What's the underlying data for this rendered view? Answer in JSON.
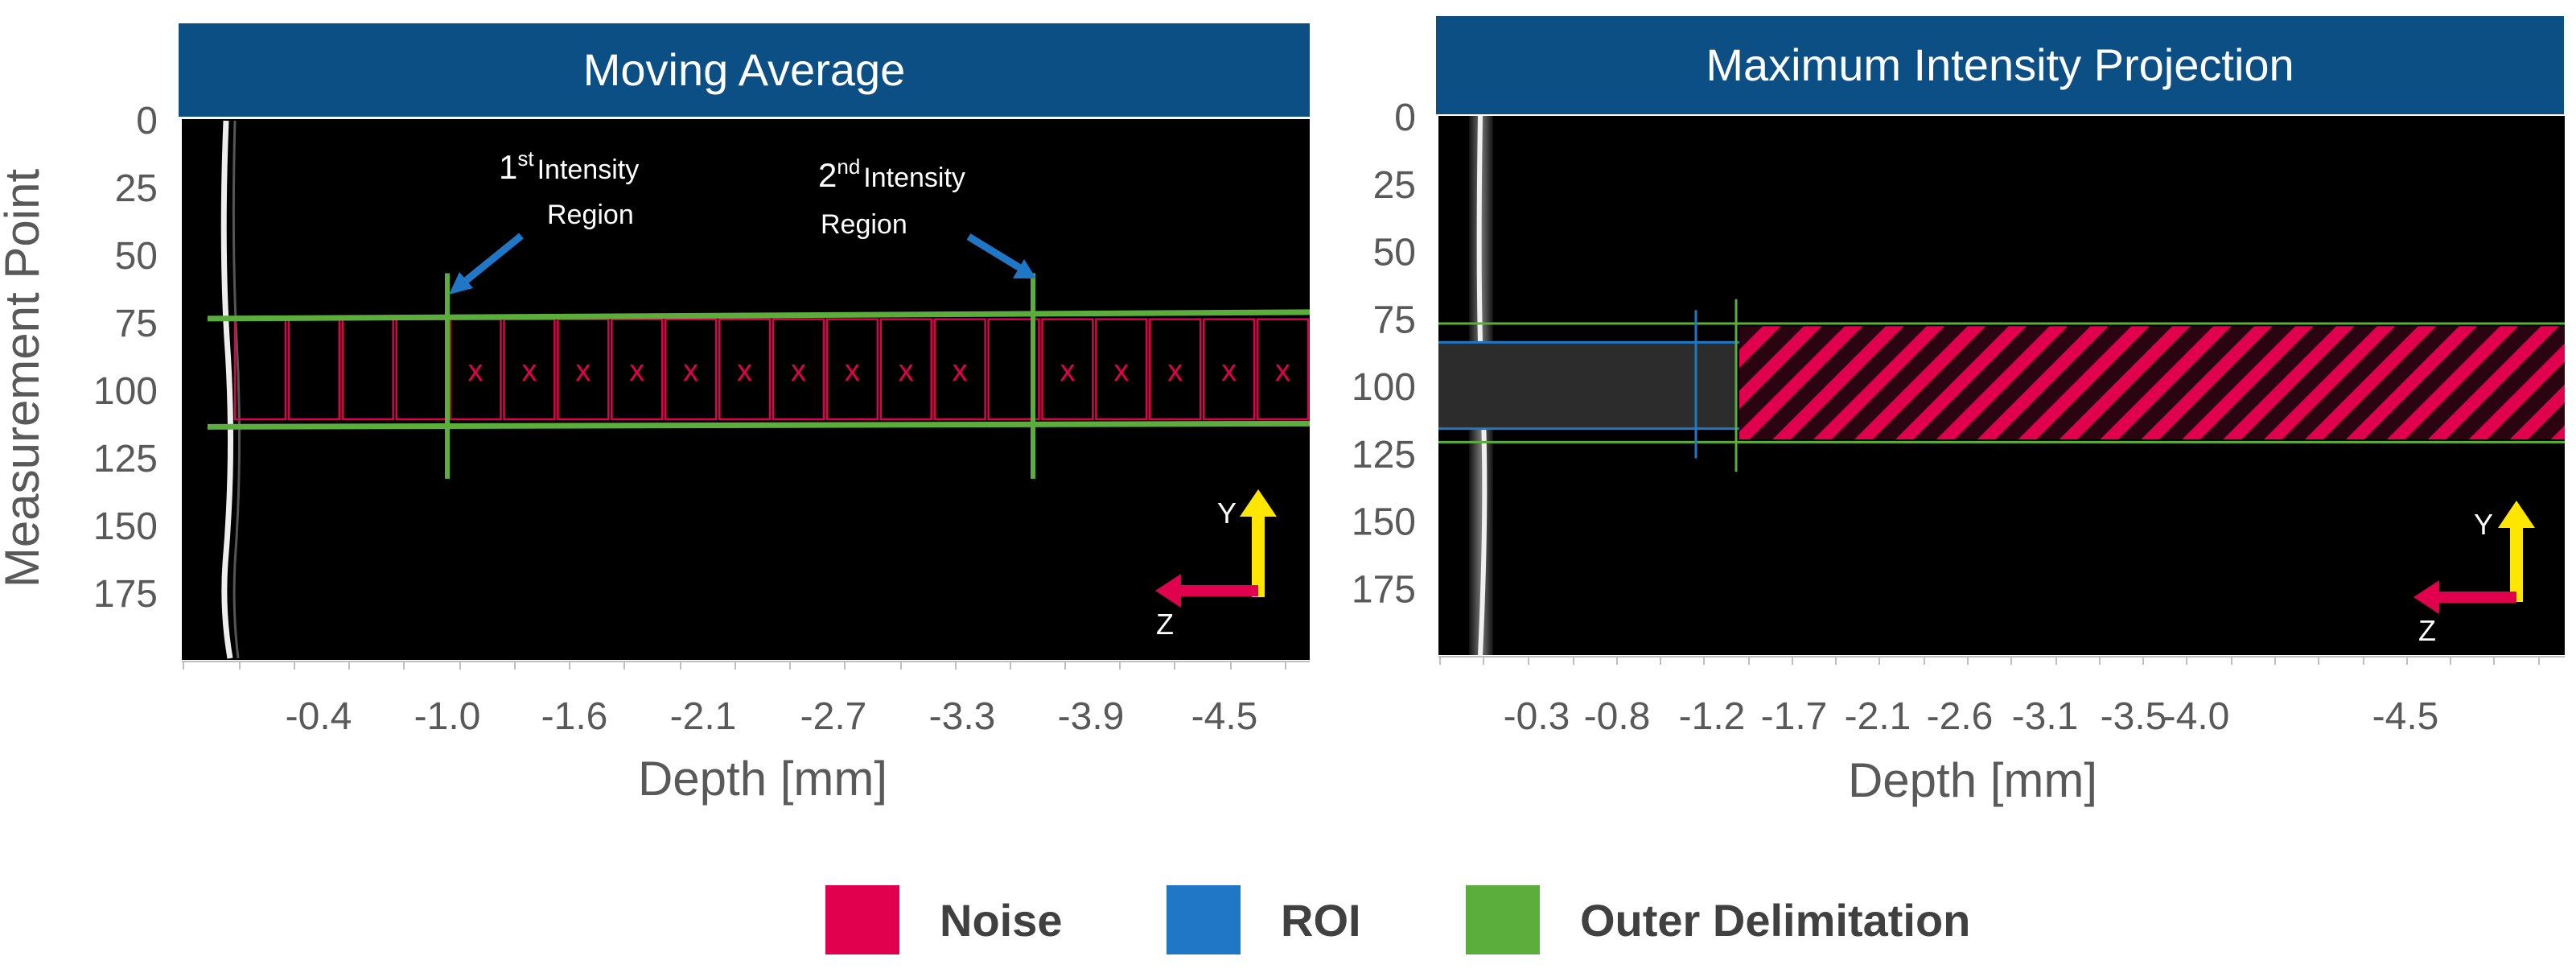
{
  "figure": {
    "y_axis_label": "Measurement Point"
  },
  "colors": {
    "header_bg": "#0b4f84",
    "header_text": "#ffffff",
    "plot_bg": "#000000",
    "noise": "#e0004d",
    "roi": "#1f77c6",
    "outer": "#5cae3c",
    "axis_text": "#595959",
    "arrow_blue": "#1f77c6",
    "axis_y_arrow": "#ffe600",
    "axis_z_arrow": "#e0004d"
  },
  "chart_data": [
    {
      "type": "heatmap",
      "title": "Moving Average",
      "xlabel": "Depth [mm]",
      "ylabel": "Measurement Point",
      "y_ticks": [
        "0",
        "25",
        "50",
        "75",
        "100",
        "125",
        "150",
        "175"
      ],
      "ylim": [
        0,
        200
      ],
      "x_ticks": [
        "-0.4",
        "-1.0",
        "-1.6",
        "-2.1",
        "-2.7",
        "-3.3",
        "-3.9",
        "-4.5"
      ],
      "outer_delimitation": {
        "y_top": 72,
        "y_bottom": 112
      },
      "intensity_regions": [
        {
          "label_base": "1",
          "label_sup": "st",
          "label_rest": "Intensity",
          "label_line2": "Region",
          "depth": "-1.0"
        },
        {
          "label_base": "2",
          "label_sup": "nd",
          "label_rest": "Intensity",
          "label_line2": "Region",
          "depth": "-3.6"
        }
      ],
      "noise_windows": {
        "count": 20,
        "marker": "x",
        "y_top": 74,
        "y_bottom": 111
      },
      "axes_indicator": {
        "y": "Y",
        "z": "Z"
      }
    },
    {
      "type": "heatmap",
      "title": "Maximum Intensity Projection",
      "xlabel": "Depth [mm]",
      "ylabel": "",
      "y_ticks": [
        "0",
        "25",
        "50",
        "75",
        "100",
        "125",
        "150",
        "175"
      ],
      "ylim": [
        0,
        200
      ],
      "x_ticks": [
        "-0.3",
        "-0.8",
        "-1.2",
        "-1.7",
        "-2.1",
        "-2.6",
        "-3.1",
        "-3.5",
        "-4.0",
        "-4.5"
      ],
      "outer_delimitation": {
        "y_top": 77,
        "y_bottom": 121
      },
      "roi": {
        "y_top": 84,
        "y_bottom": 116
      },
      "noise_region": {
        "y_top": 78,
        "y_bottom": 120,
        "depth_start": "-1.2"
      },
      "axes_indicator": {
        "y": "Y",
        "z": "Z"
      }
    }
  ],
  "legend": [
    {
      "label": "Noise",
      "color": "#e0004d"
    },
    {
      "label": "ROI",
      "color": "#1f77c6"
    },
    {
      "label": "Outer Delimitation",
      "color": "#5cae3c"
    }
  ]
}
